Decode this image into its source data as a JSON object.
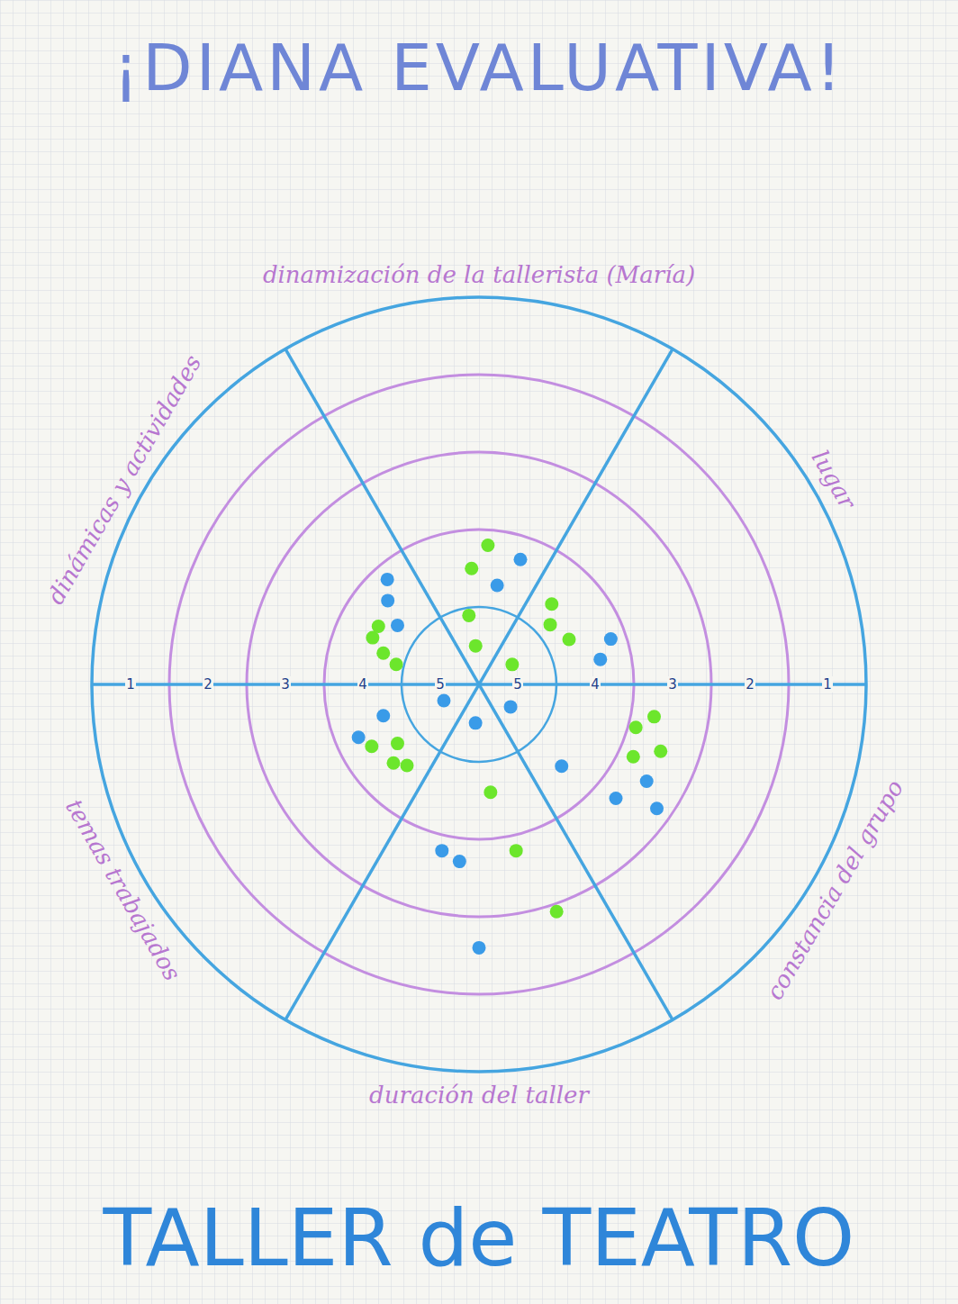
{
  "chart_data": {
    "type": "target",
    "title": "¡DIANA EVALUATIVA!",
    "subtitle": "TALLER de TEATRO",
    "categories": [
      "lugar",
      "dinamización de la tallerista (María)",
      "dinámicas y actividades",
      "temas trabajados",
      "duración del taller",
      "constancia del grupo"
    ],
    "rlim": [
      5.5,
      0.5
    ],
    "rticks": [
      1,
      2,
      3,
      4,
      5
    ],
    "series": [
      {
        "color": "#3a9be8",
        "marker": "circle",
        "x": [
          "dinámicas y actividades",
          "dinamización de la tallerista (María)",
          "dinamización de la tallerista (María)",
          "lugar",
          "dinámicas y actividades",
          "dinámicas y actividades",
          "lugar",
          "temas trabajados",
          "duración del taller",
          "constancia del grupo",
          "constancia del grupo",
          "temas trabajados",
          "temas trabajados",
          "constancia del grupo",
          "constancia del grupo",
          "constancia del grupo",
          "duración del taller",
          "duración del taller",
          "duración del taller"
        ],
        "values": [
          3.7,
          3.8,
          4.2,
          3.9,
          3.9,
          4.2,
          3.7,
          5.0,
          5.0,
          5.0,
          4.0,
          4.2,
          3.8,
          3.2,
          2.7,
          3.0,
          3.3,
          3.2,
          2.1
        ]
      },
      {
        "color": "#6ce62c",
        "marker": "circle",
        "x": [
          "dinamización de la tallerista (María)",
          "dinamización de la tallerista (María)",
          "dinámicas y actividades",
          "dinámicas y actividades",
          "dinámicas y actividades",
          "dinámicas y actividades",
          "lugar",
          "dinamización de la tallerista (María)",
          "dinamización de la tallerista (María)",
          "lugar",
          "lugar",
          "lugar",
          "temas trabajados",
          "temas trabajados",
          "temas trabajados",
          "temas trabajados",
          "constancia del grupo",
          "constancia del grupo",
          "duración del taller",
          "constancia del grupo",
          "constancia del grupo",
          "duración del taller",
          "duración del taller"
        ],
        "values": [
          3.7,
          4.0,
          4.0,
          4.0,
          4.2,
          4.4,
          4.2,
          4.6,
          5.0,
          5.0,
          4.3,
          4.1,
          3.9,
          4.2,
          4.0,
          4.1,
          3.3,
          3.0,
          4.1,
          3.4,
          3.2,
          3.3,
          2.4
        ]
      }
    ]
  }
}
